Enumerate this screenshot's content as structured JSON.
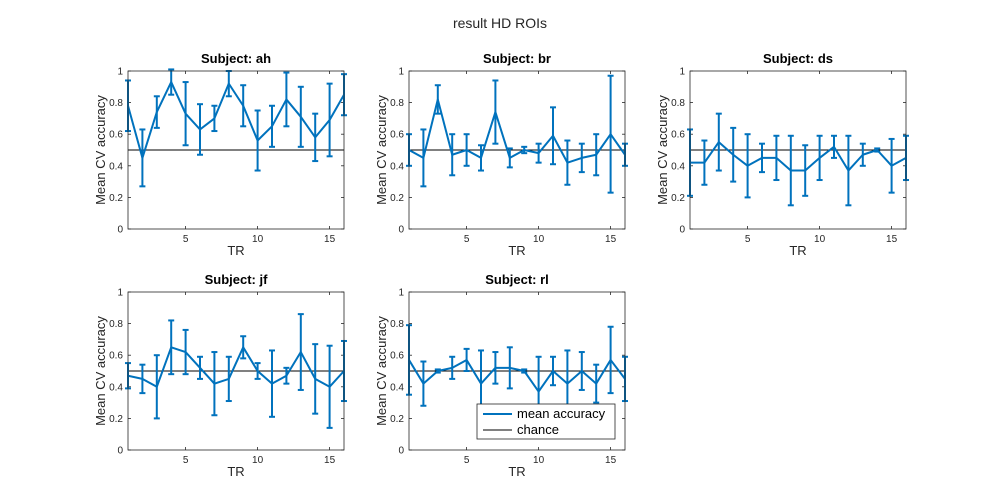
{
  "figure": {
    "title": "result HD ROIs",
    "xlabel": "TR",
    "ylabel": "Mean CV accuracy",
    "legend": {
      "items": [
        "mean accuracy",
        "chance"
      ],
      "placement": "bottom-right of Subject: rl panel"
    },
    "colors": {
      "series": "#0072bd",
      "chance": "#000000",
      "axes": "#262626"
    }
  },
  "chart_data": [
    {
      "type": "line",
      "title": "Subject: ah",
      "xlabel": "TR",
      "ylabel": "Mean CV accuracy",
      "xlim": [
        1,
        16
      ],
      "ylim": [
        0,
        1
      ],
      "xticks": [
        5,
        10,
        15
      ],
      "yticks": [
        0,
        0.2,
        0.4,
        0.6,
        0.8,
        1
      ],
      "x": [
        1,
        2,
        3,
        4,
        5,
        6,
        7,
        8,
        9,
        10,
        11,
        12,
        13,
        14,
        15,
        16
      ],
      "series": [
        {
          "name": "mean accuracy",
          "values": [
            0.78,
            0.45,
            0.74,
            0.93,
            0.73,
            0.63,
            0.7,
            0.92,
            0.78,
            0.56,
            0.65,
            0.82,
            0.71,
            0.58,
            0.69,
            0.85
          ],
          "error": [
            0.16,
            0.18,
            0.1,
            0.08,
            0.2,
            0.16,
            0.08,
            0.08,
            0.13,
            0.19,
            0.13,
            0.17,
            0.19,
            0.15,
            0.23,
            0.13
          ]
        },
        {
          "name": "chance",
          "values": [
            0.5,
            0.5,
            0.5,
            0.5,
            0.5,
            0.5,
            0.5,
            0.5,
            0.5,
            0.5,
            0.5,
            0.5,
            0.5,
            0.5,
            0.5,
            0.5
          ]
        }
      ]
    },
    {
      "type": "line",
      "title": "Subject: br",
      "xlabel": "TR",
      "ylabel": "Mean CV accuracy",
      "xlim": [
        1,
        16
      ],
      "ylim": [
        0,
        1
      ],
      "xticks": [
        5,
        10,
        15
      ],
      "yticks": [
        0,
        0.2,
        0.4,
        0.6,
        0.8,
        1
      ],
      "x": [
        1,
        2,
        3,
        4,
        5,
        6,
        7,
        8,
        9,
        10,
        11,
        12,
        13,
        14,
        15,
        16
      ],
      "series": [
        {
          "name": "mean accuracy",
          "values": [
            0.5,
            0.45,
            0.82,
            0.47,
            0.5,
            0.45,
            0.74,
            0.45,
            0.5,
            0.48,
            0.59,
            0.42,
            0.45,
            0.47,
            0.6,
            0.47
          ],
          "error": [
            0.1,
            0.18,
            0.09,
            0.13,
            0.1,
            0.08,
            0.2,
            0.06,
            0.02,
            0.06,
            0.18,
            0.14,
            0.09,
            0.13,
            0.37,
            0.07
          ]
        },
        {
          "name": "chance",
          "values": [
            0.5,
            0.5,
            0.5,
            0.5,
            0.5,
            0.5,
            0.5,
            0.5,
            0.5,
            0.5,
            0.5,
            0.5,
            0.5,
            0.5,
            0.5,
            0.5
          ]
        }
      ]
    },
    {
      "type": "line",
      "title": "Subject: ds",
      "xlabel": "TR",
      "ylabel": "Mean CV accuracy",
      "xlim": [
        1,
        16
      ],
      "ylim": [
        0,
        1
      ],
      "xticks": [
        5,
        10,
        15
      ],
      "yticks": [
        0,
        0.2,
        0.4,
        0.6,
        0.8,
        1
      ],
      "x": [
        1,
        2,
        3,
        4,
        5,
        6,
        7,
        8,
        9,
        10,
        11,
        12,
        13,
        14,
        15,
        16
      ],
      "series": [
        {
          "name": "mean accuracy",
          "values": [
            0.42,
            0.42,
            0.55,
            0.47,
            0.4,
            0.45,
            0.45,
            0.37,
            0.37,
            0.45,
            0.52,
            0.37,
            0.47,
            0.5,
            0.4,
            0.45
          ],
          "error": [
            0.21,
            0.14,
            0.18,
            0.17,
            0.2,
            0.09,
            0.14,
            0.22,
            0.16,
            0.14,
            0.07,
            0.22,
            0.07,
            0.01,
            0.17,
            0.14
          ]
        },
        {
          "name": "chance",
          "values": [
            0.5,
            0.5,
            0.5,
            0.5,
            0.5,
            0.5,
            0.5,
            0.5,
            0.5,
            0.5,
            0.5,
            0.5,
            0.5,
            0.5,
            0.5,
            0.5
          ]
        }
      ]
    },
    {
      "type": "line",
      "title": "Subject: jf",
      "xlabel": "TR",
      "ylabel": "Mean CV accuracy",
      "xlim": [
        1,
        16
      ],
      "ylim": [
        0,
        1
      ],
      "xticks": [
        5,
        10,
        15
      ],
      "yticks": [
        0,
        0.2,
        0.4,
        0.6,
        0.8,
        1
      ],
      "x": [
        1,
        2,
        3,
        4,
        5,
        6,
        7,
        8,
        9,
        10,
        11,
        12,
        13,
        14,
        15,
        16
      ],
      "series": [
        {
          "name": "mean accuracy",
          "values": [
            0.47,
            0.45,
            0.4,
            0.65,
            0.62,
            0.52,
            0.42,
            0.45,
            0.65,
            0.5,
            0.42,
            0.47,
            0.62,
            0.45,
            0.4,
            0.5
          ],
          "error": [
            0.08,
            0.09,
            0.2,
            0.17,
            0.14,
            0.07,
            0.2,
            0.14,
            0.07,
            0.05,
            0.21,
            0.05,
            0.24,
            0.22,
            0.26,
            0.19
          ]
        },
        {
          "name": "chance",
          "values": [
            0.5,
            0.5,
            0.5,
            0.5,
            0.5,
            0.5,
            0.5,
            0.5,
            0.5,
            0.5,
            0.5,
            0.5,
            0.5,
            0.5,
            0.5,
            0.5
          ]
        }
      ]
    },
    {
      "type": "line",
      "title": "Subject: rl",
      "xlabel": "TR",
      "ylabel": "Mean CV accuracy",
      "xlim": [
        1,
        16
      ],
      "ylim": [
        0,
        1
      ],
      "xticks": [
        5,
        10,
        15
      ],
      "yticks": [
        0,
        0.2,
        0.4,
        0.6,
        0.8,
        1
      ],
      "x": [
        1,
        2,
        3,
        4,
        5,
        6,
        7,
        8,
        9,
        10,
        11,
        12,
        13,
        14,
        15,
        16
      ],
      "series": [
        {
          "name": "mean accuracy",
          "values": [
            0.57,
            0.42,
            0.5,
            0.52,
            0.57,
            0.42,
            0.52,
            0.52,
            0.5,
            0.37,
            0.5,
            0.42,
            0.5,
            0.42,
            0.57,
            0.45
          ],
          "error": [
            0.22,
            0.14,
            0.01,
            0.07,
            0.07,
            0.21,
            0.1,
            0.13,
            0.01,
            0.22,
            0.09,
            0.21,
            0.12,
            0.12,
            0.21,
            0.14
          ]
        },
        {
          "name": "chance",
          "values": [
            0.5,
            0.5,
            0.5,
            0.5,
            0.5,
            0.5,
            0.5,
            0.5,
            0.5,
            0.5,
            0.5,
            0.5,
            0.5,
            0.5,
            0.5,
            0.5
          ]
        }
      ]
    }
  ]
}
